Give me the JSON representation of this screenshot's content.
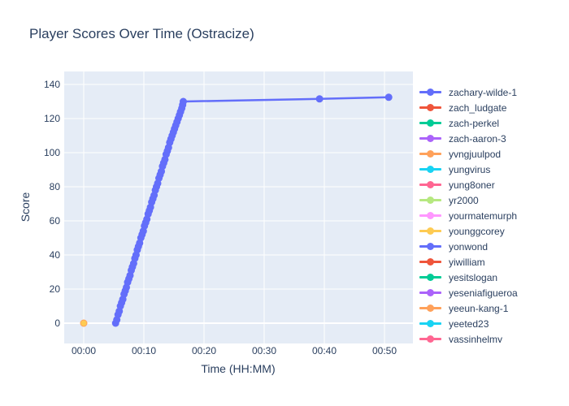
{
  "title": "Player Scores Over Time (Ostracize)",
  "chart_data": {
    "type": "line",
    "title": "Player Scores Over Time (Ostracize)",
    "xlabel": "Time (HH:MM)",
    "ylabel": "Score",
    "x_unit": "minutes_since_start",
    "xlim_minutes": [
      -3.2,
      54.7
    ],
    "ylim": [
      -12,
      148
    ],
    "grid": true,
    "legend_position": "right",
    "colors": {
      "plot_background": "#E5ECF6",
      "grid": "#FFFFFF",
      "text": "#2a3f5f",
      "paper": "#FFFFFF"
    },
    "xticks": {
      "labels": [
        "00:00",
        "00:10",
        "00:20",
        "00:30",
        "00:40",
        "00:50"
      ],
      "minutes": [
        0,
        10,
        20,
        30,
        40,
        50
      ]
    },
    "yticks": [
      0,
      20,
      40,
      60,
      80,
      100,
      120,
      140
    ],
    "series": [
      {
        "name": "zachary-wilde-1",
        "color": "#636EFA",
        "mode": "lines+markers",
        "marker_size": 9,
        "points": [
          [
            5.3,
            0
          ],
          [
            5.5,
            2
          ],
          [
            5.7,
            5
          ],
          [
            5.9,
            7
          ],
          [
            6.1,
            10
          ],
          [
            6.3,
            12
          ],
          [
            6.5,
            14
          ],
          [
            6.7,
            17
          ],
          [
            6.9,
            19
          ],
          [
            7.1,
            21
          ],
          [
            7.3,
            24
          ],
          [
            7.5,
            26
          ],
          [
            7.7,
            28
          ],
          [
            7.9,
            31
          ],
          [
            8.1,
            33
          ],
          [
            8.3,
            35
          ],
          [
            8.5,
            38
          ],
          [
            8.7,
            40
          ],
          [
            8.9,
            43
          ],
          [
            9.1,
            45
          ],
          [
            9.3,
            47
          ],
          [
            9.5,
            50
          ],
          [
            9.7,
            52
          ],
          [
            9.9,
            54
          ],
          [
            10.1,
            57
          ],
          [
            10.3,
            59
          ],
          [
            10.5,
            61
          ],
          [
            10.7,
            64
          ],
          [
            10.9,
            66
          ],
          [
            11.1,
            68
          ],
          [
            11.3,
            71
          ],
          [
            11.5,
            73
          ],
          [
            11.7,
            75
          ],
          [
            11.9,
            78
          ],
          [
            12.1,
            80
          ],
          [
            12.3,
            82
          ],
          [
            12.5,
            85
          ],
          [
            12.7,
            87
          ],
          [
            12.9,
            89
          ],
          [
            13.1,
            92
          ],
          [
            13.3,
            94
          ],
          [
            13.5,
            96
          ],
          [
            13.7,
            99
          ],
          [
            13.9,
            101
          ],
          [
            14.1,
            103
          ],
          [
            14.3,
            106
          ],
          [
            14.5,
            108
          ],
          [
            14.7,
            110
          ],
          [
            14.9,
            112
          ],
          [
            15.1,
            114
          ],
          [
            15.3,
            116
          ],
          [
            15.5,
            118
          ],
          [
            15.7,
            120
          ],
          [
            15.9,
            122
          ],
          [
            16.1,
            124
          ],
          [
            16.3,
            126
          ],
          [
            16.45,
            128
          ],
          [
            16.55,
            130
          ],
          [
            39.2,
            131.5
          ],
          [
            50.7,
            132.5
          ]
        ]
      },
      {
        "name": "zach_ludgate",
        "color": "#EF553B",
        "mode": "lines+markers",
        "marker_size": 9,
        "points": []
      },
      {
        "name": "zach-perkel",
        "color": "#00CC96",
        "mode": "lines+markers",
        "marker_size": 9,
        "points": []
      },
      {
        "name": "zach-aaron-3",
        "color": "#AB63FA",
        "mode": "lines+markers",
        "marker_size": 9,
        "points": []
      },
      {
        "name": "yvngjuulpod",
        "color": "#FFA15A",
        "mode": "lines+markers",
        "marker_size": 9,
        "points": [
          [
            0,
            0
          ]
        ]
      },
      {
        "name": "yungvirus",
        "color": "#19D3F3",
        "mode": "lines+markers",
        "marker_size": 9,
        "points": []
      },
      {
        "name": "yung8oner",
        "color": "#FF6692",
        "mode": "lines+markers",
        "marker_size": 9,
        "points": []
      },
      {
        "name": "yr2000",
        "color": "#B6E880",
        "mode": "lines+markers",
        "marker_size": 9,
        "points": []
      },
      {
        "name": "yourmatemurph",
        "color": "#FF97FF",
        "mode": "lines+markers",
        "marker_size": 9,
        "points": []
      },
      {
        "name": "younggcorey",
        "color": "#FECB52",
        "mode": "lines+markers",
        "marker_size": 7,
        "points": [
          [
            0,
            0
          ]
        ]
      },
      {
        "name": "yonwond",
        "color": "#636EFA",
        "mode": "lines+markers",
        "marker_size": 9,
        "points": []
      },
      {
        "name": "yiwilliam",
        "color": "#EF553B",
        "mode": "lines+markers",
        "marker_size": 9,
        "points": []
      },
      {
        "name": "yesitslogan",
        "color": "#00CC96",
        "mode": "lines+markers",
        "marker_size": 9,
        "points": []
      },
      {
        "name": "yeseniafigueroa",
        "color": "#AB63FA",
        "mode": "lines+markers",
        "marker_size": 9,
        "points": []
      },
      {
        "name": "yeeun-kang-1",
        "color": "#FFA15A",
        "mode": "lines+markers",
        "marker_size": 9,
        "points": []
      },
      {
        "name": "yeeted23",
        "color": "#19D3F3",
        "mode": "lines+markers",
        "marker_size": 9,
        "points": []
      },
      {
        "name": "yassinhelmy",
        "color": "#FF6692",
        "mode": "lines+markers",
        "marker_size": 9,
        "points": []
      }
    ]
  }
}
